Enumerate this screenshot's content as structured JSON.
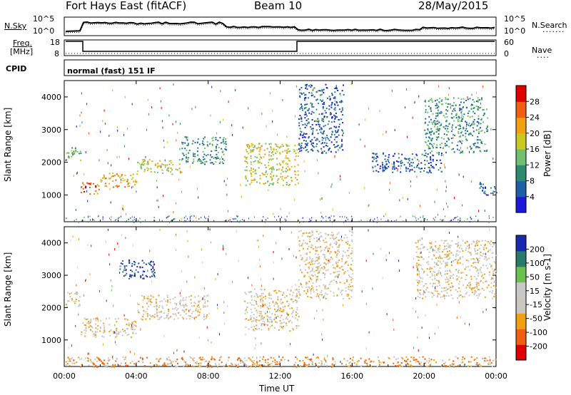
{
  "header": {
    "station": "Fort Hays East (fitACF)",
    "beam": "Beam 10",
    "date": "28/May/2015"
  },
  "noise_panel": {
    "left_label": "N.Sky",
    "right_label": "N.Search",
    "left_ticks": [
      "10^5",
      "10^0"
    ],
    "right_ticks": [
      "10^5",
      "10^0"
    ]
  },
  "freq_panel": {
    "left_label_1": "Freq.",
    "left_label_2": "[MHz]",
    "right_label": "Nave",
    "left_ticks": [
      "18",
      "8"
    ],
    "right_ticks": [
      "60",
      "0"
    ]
  },
  "cpid_panel": {
    "label": "CPID",
    "mode": "normal (fast) 151 IF"
  },
  "axes": {
    "xlabel": "Time UT",
    "ylabel": "Slant Range [km]",
    "x_ticks": [
      "00:00",
      "04:00",
      "08:00",
      "12:00",
      "16:00",
      "20:00",
      "00:00"
    ],
    "y_ticks": [
      "1000",
      "2000",
      "3000",
      "4000"
    ]
  },
  "chart_data": [
    {
      "type": "heatmap",
      "name": "Power",
      "x_range_hours": [
        0,
        24
      ],
      "y_range_km": [
        180,
        4500
      ],
      "colorbar_label": "Power [dB]",
      "colorbar_ticks": [
        "4",
        "8",
        "12",
        "16",
        "20",
        "24",
        "28"
      ],
      "colorbar_range": [
        0,
        30
      ],
      "colors": [
        "#1a1ad8",
        "#1f5fa8",
        "#2e8a6e",
        "#70c070",
        "#c8c820",
        "#f0a010",
        "#f06010",
        "#e00000"
      ],
      "features": [
        {
          "x": [
            0.0,
            0.9
          ],
          "y": [
            2050,
            2500
          ],
          "level": 3
        },
        {
          "x": [
            0.9,
            2.0
          ],
          "y": [
            1000,
            1400
          ],
          "level": 6
        },
        {
          "x": [
            2.0,
            4.0
          ],
          "y": [
            1250,
            1700
          ],
          "level": 5
        },
        {
          "x": [
            4.0,
            6.5
          ],
          "y": [
            1650,
            2100
          ],
          "level": 4
        },
        {
          "x": [
            6.5,
            9.0
          ],
          "y": [
            1950,
            2800
          ],
          "level": 2
        },
        {
          "x": [
            10.0,
            13.0
          ],
          "y": [
            1300,
            2600
          ],
          "level": 4
        },
        {
          "x": [
            13.0,
            15.5
          ],
          "y": [
            2300,
            4400
          ],
          "level": 1
        },
        {
          "x": [
            17.0,
            21.0
          ],
          "y": [
            1700,
            2300
          ],
          "level": 1
        },
        {
          "x": [
            20.0,
            23.5
          ],
          "y": [
            2300,
            4000
          ],
          "level": 2
        },
        {
          "x": [
            23.0,
            24.0
          ],
          "y": [
            1000,
            1400
          ],
          "level": 1
        }
      ]
    },
    {
      "type": "heatmap",
      "name": "Velocity",
      "x_range_hours": [
        0,
        24
      ],
      "y_range_km": [
        180,
        4500
      ],
      "colorbar_label": "Velocity [m s-1]",
      "colorbar_ticks": [
        "-200",
        "-100",
        "-50",
        "-15",
        "15",
        "50",
        "100",
        "200"
      ],
      "colorbar_range": [
        -250,
        250
      ],
      "colors": [
        "#e00000",
        "#f06010",
        "#f0a010",
        "#c8c8c0",
        "#c8c8c8",
        "#6cc050",
        "#2a7a6a",
        "#1a2ab0"
      ],
      "features": [
        {
          "x": [
            0.0,
            0.9
          ],
          "y": [
            2050,
            2500
          ],
          "level": 3
        },
        {
          "x": [
            0.9,
            4.0
          ],
          "y": [
            1100,
            1700
          ],
          "level": 3
        },
        {
          "x": [
            4.0,
            8.0
          ],
          "y": [
            1650,
            2400
          ],
          "level": 3
        },
        {
          "x": [
            3.0,
            5.0
          ],
          "y": [
            2900,
            3500
          ],
          "level": 7
        },
        {
          "x": [
            10.0,
            13.0
          ],
          "y": [
            1300,
            2600
          ],
          "level": 3
        },
        {
          "x": [
            13.0,
            16.0
          ],
          "y": [
            2300,
            4400
          ],
          "level": 3
        },
        {
          "x": [
            19.5,
            24.0
          ],
          "y": [
            2300,
            4100
          ],
          "level": 3
        },
        {
          "x": [
            0.0,
            24.0
          ],
          "y": [
            180,
            500
          ],
          "level": 2
        }
      ]
    }
  ]
}
